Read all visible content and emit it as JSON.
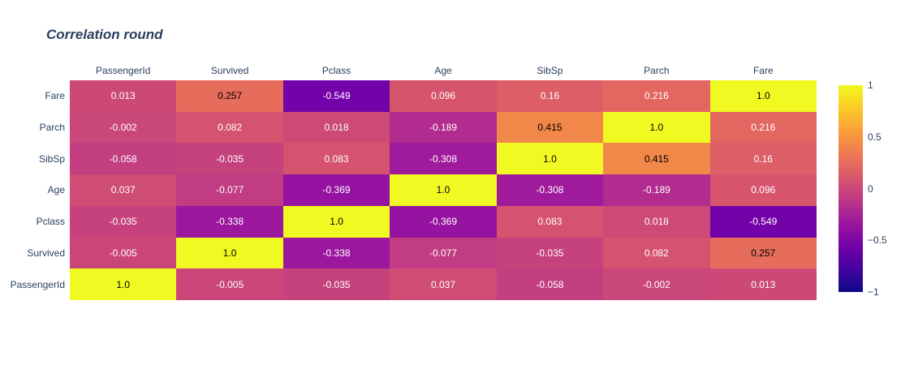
{
  "title": "Correlation round",
  "colors": {
    "background": "#ffffff",
    "title": "#2a3f5f",
    "axis_label": "#2a3f5f",
    "cell_text_light": "#ffffff",
    "cell_text_dark": "#000000"
  },
  "chart_data": {
    "type": "heatmap",
    "title": "Correlation round",
    "xlabel": "",
    "ylabel": "",
    "x_axis_side": "top",
    "grid": false,
    "columns": [
      "PassengerId",
      "Survived",
      "Pclass",
      "Age",
      "SibSp",
      "Parch",
      "Fare"
    ],
    "rows": [
      "Fare",
      "Parch",
      "SibSp",
      "Age",
      "Pclass",
      "Survived",
      "PassengerId"
    ],
    "z": [
      [
        0.013,
        0.257,
        -0.549,
        0.096,
        0.16,
        0.216,
        1.0
      ],
      [
        -0.002,
        0.082,
        0.018,
        -0.189,
        0.415,
        1.0,
        0.216
      ],
      [
        -0.058,
        -0.035,
        0.083,
        -0.308,
        1.0,
        0.415,
        0.16
      ],
      [
        0.037,
        -0.077,
        -0.369,
        1.0,
        -0.308,
        -0.189,
        0.096
      ],
      [
        -0.035,
        -0.338,
        1.0,
        -0.369,
        0.083,
        0.018,
        -0.549
      ],
      [
        -0.005,
        1.0,
        -0.338,
        -0.077,
        -0.035,
        0.082,
        0.257
      ],
      [
        1.0,
        -0.005,
        -0.035,
        0.037,
        -0.058,
        -0.002,
        0.013
      ]
    ],
    "z_text": [
      [
        "0.013",
        "0.257",
        "-0.549",
        "0.096",
        "0.16",
        "0.216",
        "1.0"
      ],
      [
        "-0.002",
        "0.082",
        "0.018",
        "-0.189",
        "0.415",
        "1.0",
        "0.216"
      ],
      [
        "-0.058",
        "-0.035",
        "0.083",
        "-0.308",
        "1.0",
        "0.415",
        "0.16"
      ],
      [
        "0.037",
        "-0.077",
        "-0.369",
        "1.0",
        "-0.308",
        "-0.189",
        "0.096"
      ],
      [
        "-0.035",
        "-0.338",
        "1.0",
        "-0.369",
        "0.083",
        "0.018",
        "-0.549"
      ],
      [
        "-0.005",
        "1.0",
        "-0.338",
        "-0.077",
        "-0.035",
        "0.082",
        "0.257"
      ],
      [
        "1.0",
        "-0.005",
        "-0.035",
        "0.037",
        "-0.058",
        "-0.002",
        "0.013"
      ]
    ],
    "zmin": -1,
    "zmax": 1,
    "colorscale_name": "plasma",
    "colorscale_stops": [
      "#0d0887",
      "#46039f",
      "#7201a8",
      "#9c179e",
      "#bd3786",
      "#d8576b",
      "#ed7953",
      "#fb9f3a",
      "#fdca26",
      "#f0f921"
    ],
    "colorbar": {
      "tick_labels": [
        "1",
        "0.5",
        "0",
        "−0.5",
        "−1"
      ],
      "tick_values": [
        1,
        0.5,
        0,
        -0.5,
        -1
      ]
    }
  }
}
